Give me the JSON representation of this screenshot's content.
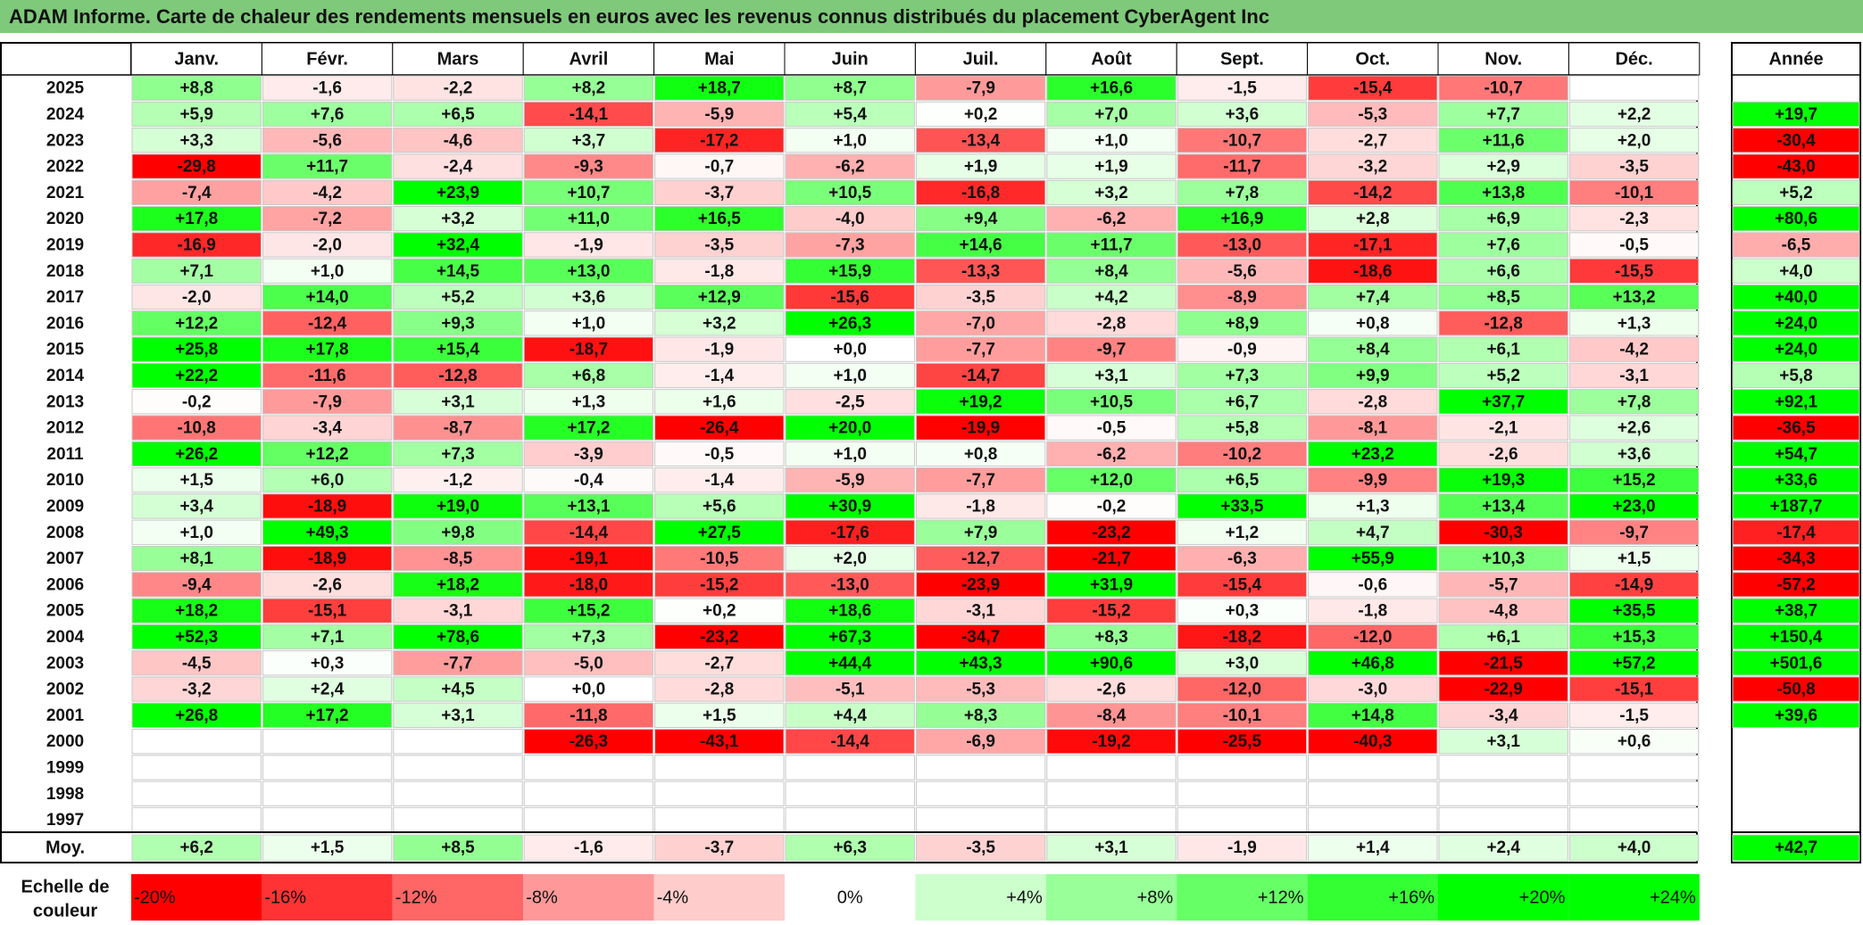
{
  "title": "ADAM Informe. Carte de chaleur des rendements mensuels en euros avec les revenus connus distribués du placement CyberAgent Inc",
  "chart_data": {
    "type": "heatmap",
    "months": [
      "Janv.",
      "Févr.",
      "Mars",
      "Avril",
      "Mai",
      "Juin",
      "Juil.",
      "Août",
      "Sept.",
      "Oct.",
      "Nov.",
      "Déc."
    ],
    "year_header": "Année",
    "rows": [
      {
        "year": "2025",
        "values": [
          "+8,8",
          "-1,6",
          "-2,2",
          "+8,2",
          "+18,7",
          "+8,7",
          "-7,9",
          "+16,6",
          "-1,5",
          "-15,4",
          "-10,7",
          ""
        ],
        "total": ""
      },
      {
        "year": "2024",
        "values": [
          "+5,9",
          "+7,6",
          "+6,5",
          "-14,1",
          "-5,9",
          "+5,4",
          "+0,2",
          "+7,0",
          "+3,6",
          "-5,3",
          "+7,7",
          "+2,2"
        ],
        "total": "+19,7"
      },
      {
        "year": "2023",
        "values": [
          "+3,3",
          "-5,6",
          "-4,6",
          "+3,7",
          "-17,2",
          "+1,0",
          "-13,4",
          "+1,0",
          "-10,7",
          "-2,7",
          "+11,6",
          "+2,0"
        ],
        "total": "-30,4"
      },
      {
        "year": "2022",
        "values": [
          "-29,8",
          "+11,7",
          "-2,4",
          "-9,3",
          "-0,7",
          "-6,2",
          "+1,9",
          "+1,9",
          "-11,7",
          "-3,2",
          "+2,9",
          "-3,5"
        ],
        "total": "-43,0"
      },
      {
        "year": "2021",
        "values": [
          "-7,4",
          "-4,2",
          "+23,9",
          "+10,7",
          "-3,7",
          "+10,5",
          "-16,8",
          "+3,2",
          "+7,8",
          "-14,2",
          "+13,8",
          "-10,1"
        ],
        "total": "+5,2"
      },
      {
        "year": "2020",
        "values": [
          "+17,8",
          "-7,2",
          "+3,2",
          "+11,0",
          "+16,5",
          "-4,0",
          "+9,4",
          "-6,2",
          "+16,9",
          "+2,8",
          "+6,9",
          "-2,3"
        ],
        "total": "+80,6"
      },
      {
        "year": "2019",
        "values": [
          "-16,9",
          "-2,0",
          "+32,4",
          "-1,9",
          "-3,5",
          "-7,3",
          "+14,6",
          "+11,7",
          "-13,0",
          "-17,1",
          "+7,6",
          "-0,5"
        ],
        "total": "-6,5"
      },
      {
        "year": "2018",
        "values": [
          "+7,1",
          "+1,0",
          "+14,5",
          "+13,0",
          "-1,8",
          "+15,9",
          "-13,3",
          "+8,4",
          "-5,6",
          "-18,6",
          "+6,6",
          "-15,5"
        ],
        "total": "+4,0"
      },
      {
        "year": "2017",
        "values": [
          "-2,0",
          "+14,0",
          "+5,2",
          "+3,6",
          "+12,9",
          "-15,6",
          "-3,5",
          "+4,2",
          "-8,9",
          "+7,4",
          "+8,5",
          "+13,2"
        ],
        "total": "+40,0"
      },
      {
        "year": "2016",
        "values": [
          "+12,2",
          "-12,4",
          "+9,3",
          "+1,0",
          "+3,2",
          "+26,3",
          "-7,0",
          "-2,8",
          "+8,9",
          "+0,8",
          "-12,8",
          "+1,3"
        ],
        "total": "+24,0"
      },
      {
        "year": "2015",
        "values": [
          "+25,8",
          "+17,8",
          "+15,4",
          "-18,7",
          "-1,9",
          "+0,0",
          "-7,7",
          "-9,7",
          "-0,9",
          "+8,4",
          "+6,1",
          "-4,2"
        ],
        "total": "+24,0"
      },
      {
        "year": "2014",
        "values": [
          "+22,2",
          "-11,6",
          "-12,8",
          "+6,8",
          "-1,4",
          "+1,0",
          "-14,7",
          "+3,1",
          "+7,3",
          "+9,9",
          "+5,2",
          "-3,1"
        ],
        "total": "+5,8"
      },
      {
        "year": "2013",
        "values": [
          "-0,2",
          "-7,9",
          "+3,1",
          "+1,3",
          "+1,6",
          "-2,5",
          "+19,2",
          "+10,5",
          "+6,7",
          "-2,8",
          "+37,7",
          "+7,8"
        ],
        "total": "+92,1"
      },
      {
        "year": "2012",
        "values": [
          "-10,8",
          "-3,4",
          "-8,7",
          "+17,2",
          "-26,4",
          "+20,0",
          "-19,9",
          "-0,5",
          "+5,8",
          "-8,1",
          "-2,1",
          "+2,6"
        ],
        "total": "-36,5"
      },
      {
        "year": "2011",
        "values": [
          "+26,2",
          "+12,2",
          "+7,3",
          "-3,9",
          "-0,5",
          "+1,0",
          "+0,8",
          "-6,2",
          "-10,2",
          "+23,2",
          "-2,6",
          "+3,6"
        ],
        "total": "+54,7"
      },
      {
        "year": "2010",
        "values": [
          "+1,5",
          "+6,0",
          "-1,2",
          "-0,4",
          "-1,4",
          "-5,9",
          "-7,7",
          "+12,0",
          "+6,5",
          "-9,9",
          "+19,3",
          "+15,2"
        ],
        "total": "+33,6"
      },
      {
        "year": "2009",
        "values": [
          "+3,4",
          "-18,9",
          "+19,0",
          "+13,1",
          "+5,6",
          "+30,9",
          "-1,8",
          "-0,2",
          "+33,5",
          "+1,3",
          "+13,4",
          "+23,0"
        ],
        "total": "+187,7"
      },
      {
        "year": "2008",
        "values": [
          "+1,0",
          "+49,3",
          "+9,8",
          "-14,4",
          "+27,5",
          "-17,6",
          "+7,9",
          "-23,2",
          "+1,2",
          "+4,7",
          "-30,3",
          "-9,7"
        ],
        "total": "-17,4"
      },
      {
        "year": "2007",
        "values": [
          "+8,1",
          "-18,9",
          "-8,5",
          "-19,1",
          "-10,5",
          "+2,0",
          "-12,7",
          "-21,7",
          "-6,3",
          "+55,9",
          "+10,3",
          "+1,5"
        ],
        "total": "-34,3"
      },
      {
        "year": "2006",
        "values": [
          "-9,4",
          "-2,6",
          "+18,2",
          "-18,0",
          "-15,2",
          "-13,0",
          "-23,9",
          "+31,9",
          "-15,4",
          "-0,6",
          "-5,7",
          "-14,9"
        ],
        "total": "-57,2"
      },
      {
        "year": "2005",
        "values": [
          "+18,2",
          "-15,1",
          "-3,1",
          "+15,2",
          "+0,2",
          "+18,6",
          "-3,1",
          "-15,2",
          "+0,3",
          "-1,8",
          "-4,8",
          "+35,5"
        ],
        "total": "+38,7"
      },
      {
        "year": "2004",
        "values": [
          "+52,3",
          "+7,1",
          "+78,6",
          "+7,3",
          "-23,2",
          "+67,3",
          "-34,7",
          "+8,3",
          "-18,2",
          "-12,0",
          "+6,1",
          "+15,3"
        ],
        "total": "+150,4"
      },
      {
        "year": "2003",
        "values": [
          "-4,5",
          "+0,3",
          "-7,7",
          "-5,0",
          "-2,7",
          "+44,4",
          "+43,3",
          "+90,6",
          "+3,0",
          "+46,8",
          "-21,5",
          "+57,2"
        ],
        "total": "+501,6"
      },
      {
        "year": "2002",
        "values": [
          "-3,2",
          "+2,4",
          "+4,5",
          "+0,0",
          "-2,8",
          "-5,1",
          "-5,3",
          "-2,6",
          "-12,0",
          "-3,0",
          "-22,9",
          "-15,1"
        ],
        "total": "-50,8"
      },
      {
        "year": "2001",
        "values": [
          "+26,8",
          "+17,2",
          "+3,1",
          "-11,8",
          "+1,5",
          "+4,4",
          "+8,3",
          "-8,4",
          "-10,1",
          "+14,8",
          "-3,4",
          "-1,5"
        ],
        "total": "+39,6"
      },
      {
        "year": "2000",
        "values": [
          "",
          "",
          "",
          "-26,3",
          "-43,1",
          "-14,4",
          "-6,9",
          "-19,2",
          "-25,5",
          "-40,3",
          "+3,1",
          "+0,6"
        ],
        "total": ""
      },
      {
        "year": "1999",
        "values": [
          "",
          "",
          "",
          "",
          "",
          "",
          "",
          "",
          "",
          "",
          "",
          ""
        ],
        "total": ""
      },
      {
        "year": "1998",
        "values": [
          "",
          "",
          "",
          "",
          "",
          "",
          "",
          "",
          "",
          "",
          "",
          ""
        ],
        "total": ""
      },
      {
        "year": "1997",
        "values": [
          "",
          "",
          "",
          "",
          "",
          "",
          "",
          "",
          "",
          "",
          "",
          ""
        ],
        "total": ""
      }
    ],
    "average": {
      "label": "Moy.",
      "values": [
        "+6,2",
        "+1,5",
        "+8,5",
        "-1,6",
        "-3,7",
        "+6,3",
        "-3,5",
        "+3,1",
        "-1,9",
        "+1,4",
        "+2,4",
        "+4,0"
      ],
      "total": "+42,7"
    },
    "scale": {
      "label_line1": "Echelle de",
      "label_line2": "couleur",
      "items": [
        {
          "label": "-20%",
          "value": -20
        },
        {
          "label": "-16%",
          "value": -16
        },
        {
          "label": "-12%",
          "value": -12
        },
        {
          "label": "-8%",
          "value": -8
        },
        {
          "label": "-4%",
          "value": -4
        },
        {
          "label": "0%",
          "value": 0
        },
        {
          "label": "+4%",
          "value": 4
        },
        {
          "label": "+8%",
          "value": 8
        },
        {
          "label": "+12%",
          "value": 12
        },
        {
          "label": "+16%",
          "value": 16
        },
        {
          "label": "+20%",
          "value": 20
        },
        {
          "label": "+24%",
          "value": 24
        }
      ]
    },
    "colors": {
      "negative": "#ff0000",
      "neutral": "#ffffff",
      "positive": "#00ff00",
      "title_bg": "#7ec97a"
    }
  }
}
